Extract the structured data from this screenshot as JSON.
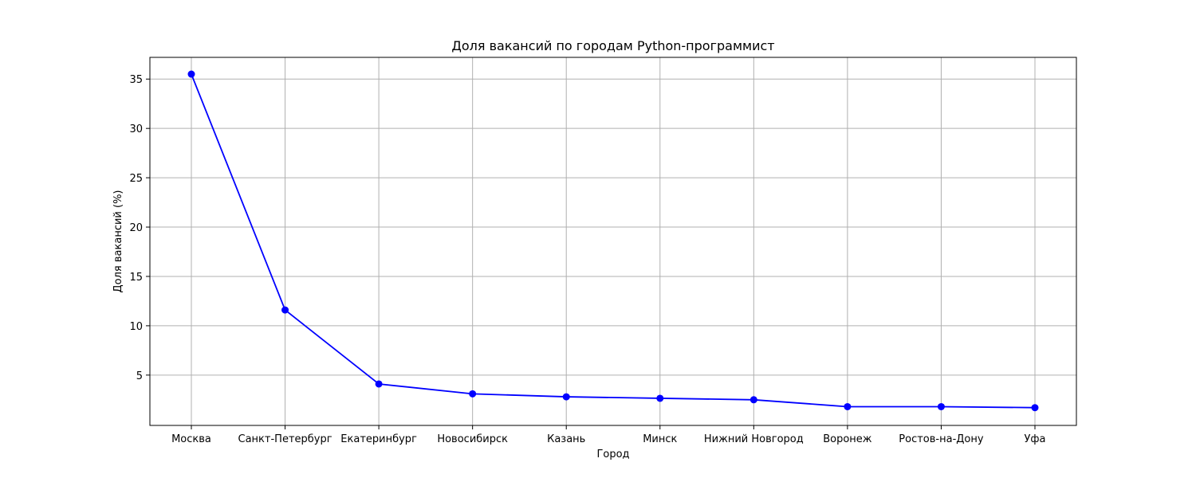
{
  "chart_data": {
    "type": "line",
    "title": "Доля вакансий по городам Python-программист",
    "xlabel": "Город",
    "ylabel": "Доля вакансий (%)",
    "categories": [
      "Москва",
      "Санкт-Петербург",
      "Екатеринбург",
      "Новосибирск",
      "Казань",
      "Минск",
      "Нижний Новгород",
      "Воронеж",
      "Ростов-на-Дону",
      "Уфа"
    ],
    "series": [
      {
        "values": [
          35.5,
          11.6,
          4.1,
          3.1,
          2.8,
          2.65,
          2.5,
          1.8,
          1.8,
          1.7
        ],
        "color": "#0000ff",
        "marker": "circle"
      }
    ],
    "yticks": [
      5,
      10,
      15,
      20,
      25,
      30,
      35
    ],
    "ylim": [
      -0.1,
      37.2
    ],
    "grid": true,
    "grid_color": "#b0b0b0",
    "legend": "none"
  }
}
